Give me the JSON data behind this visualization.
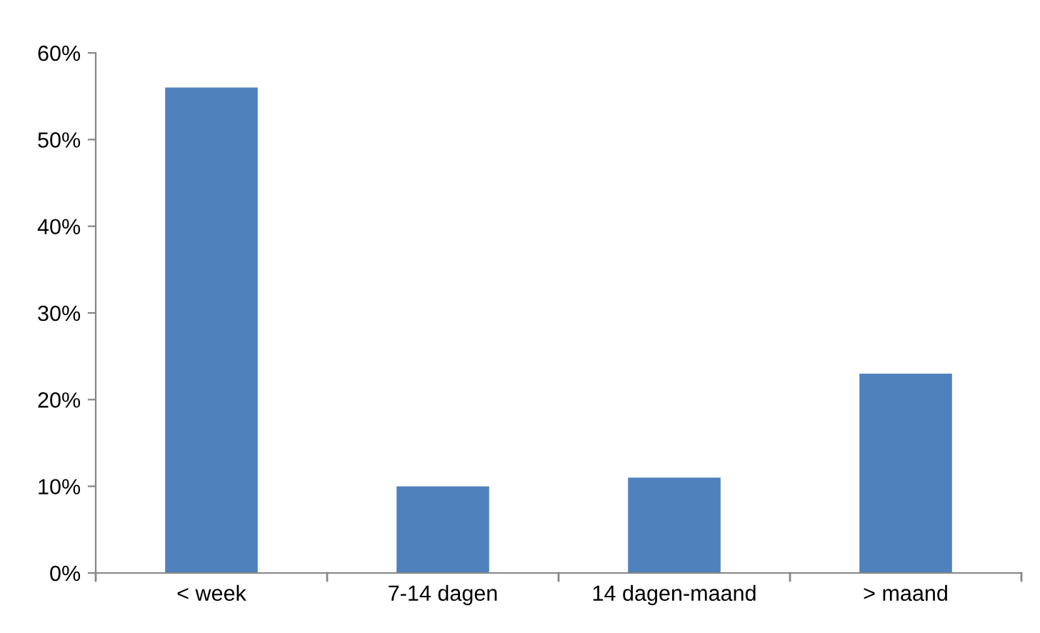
{
  "chart_data": {
    "type": "bar",
    "categories": [
      "< week",
      "7-14 dagen",
      "14 dagen-maand",
      "> maand"
    ],
    "values": [
      56,
      10,
      11,
      23
    ],
    "color": "#4f81bd",
    "ylim": [
      0,
      60
    ],
    "yticks": [
      {
        "value": 0,
        "label": "0%"
      },
      {
        "value": 10,
        "label": "10%"
      },
      {
        "value": 20,
        "label": "20%"
      },
      {
        "value": 30,
        "label": "30%"
      },
      {
        "value": 40,
        "label": "40%"
      },
      {
        "value": 50,
        "label": "50%"
      },
      {
        "value": 60,
        "label": "60%"
      }
    ],
    "grid": false,
    "legend": false
  }
}
